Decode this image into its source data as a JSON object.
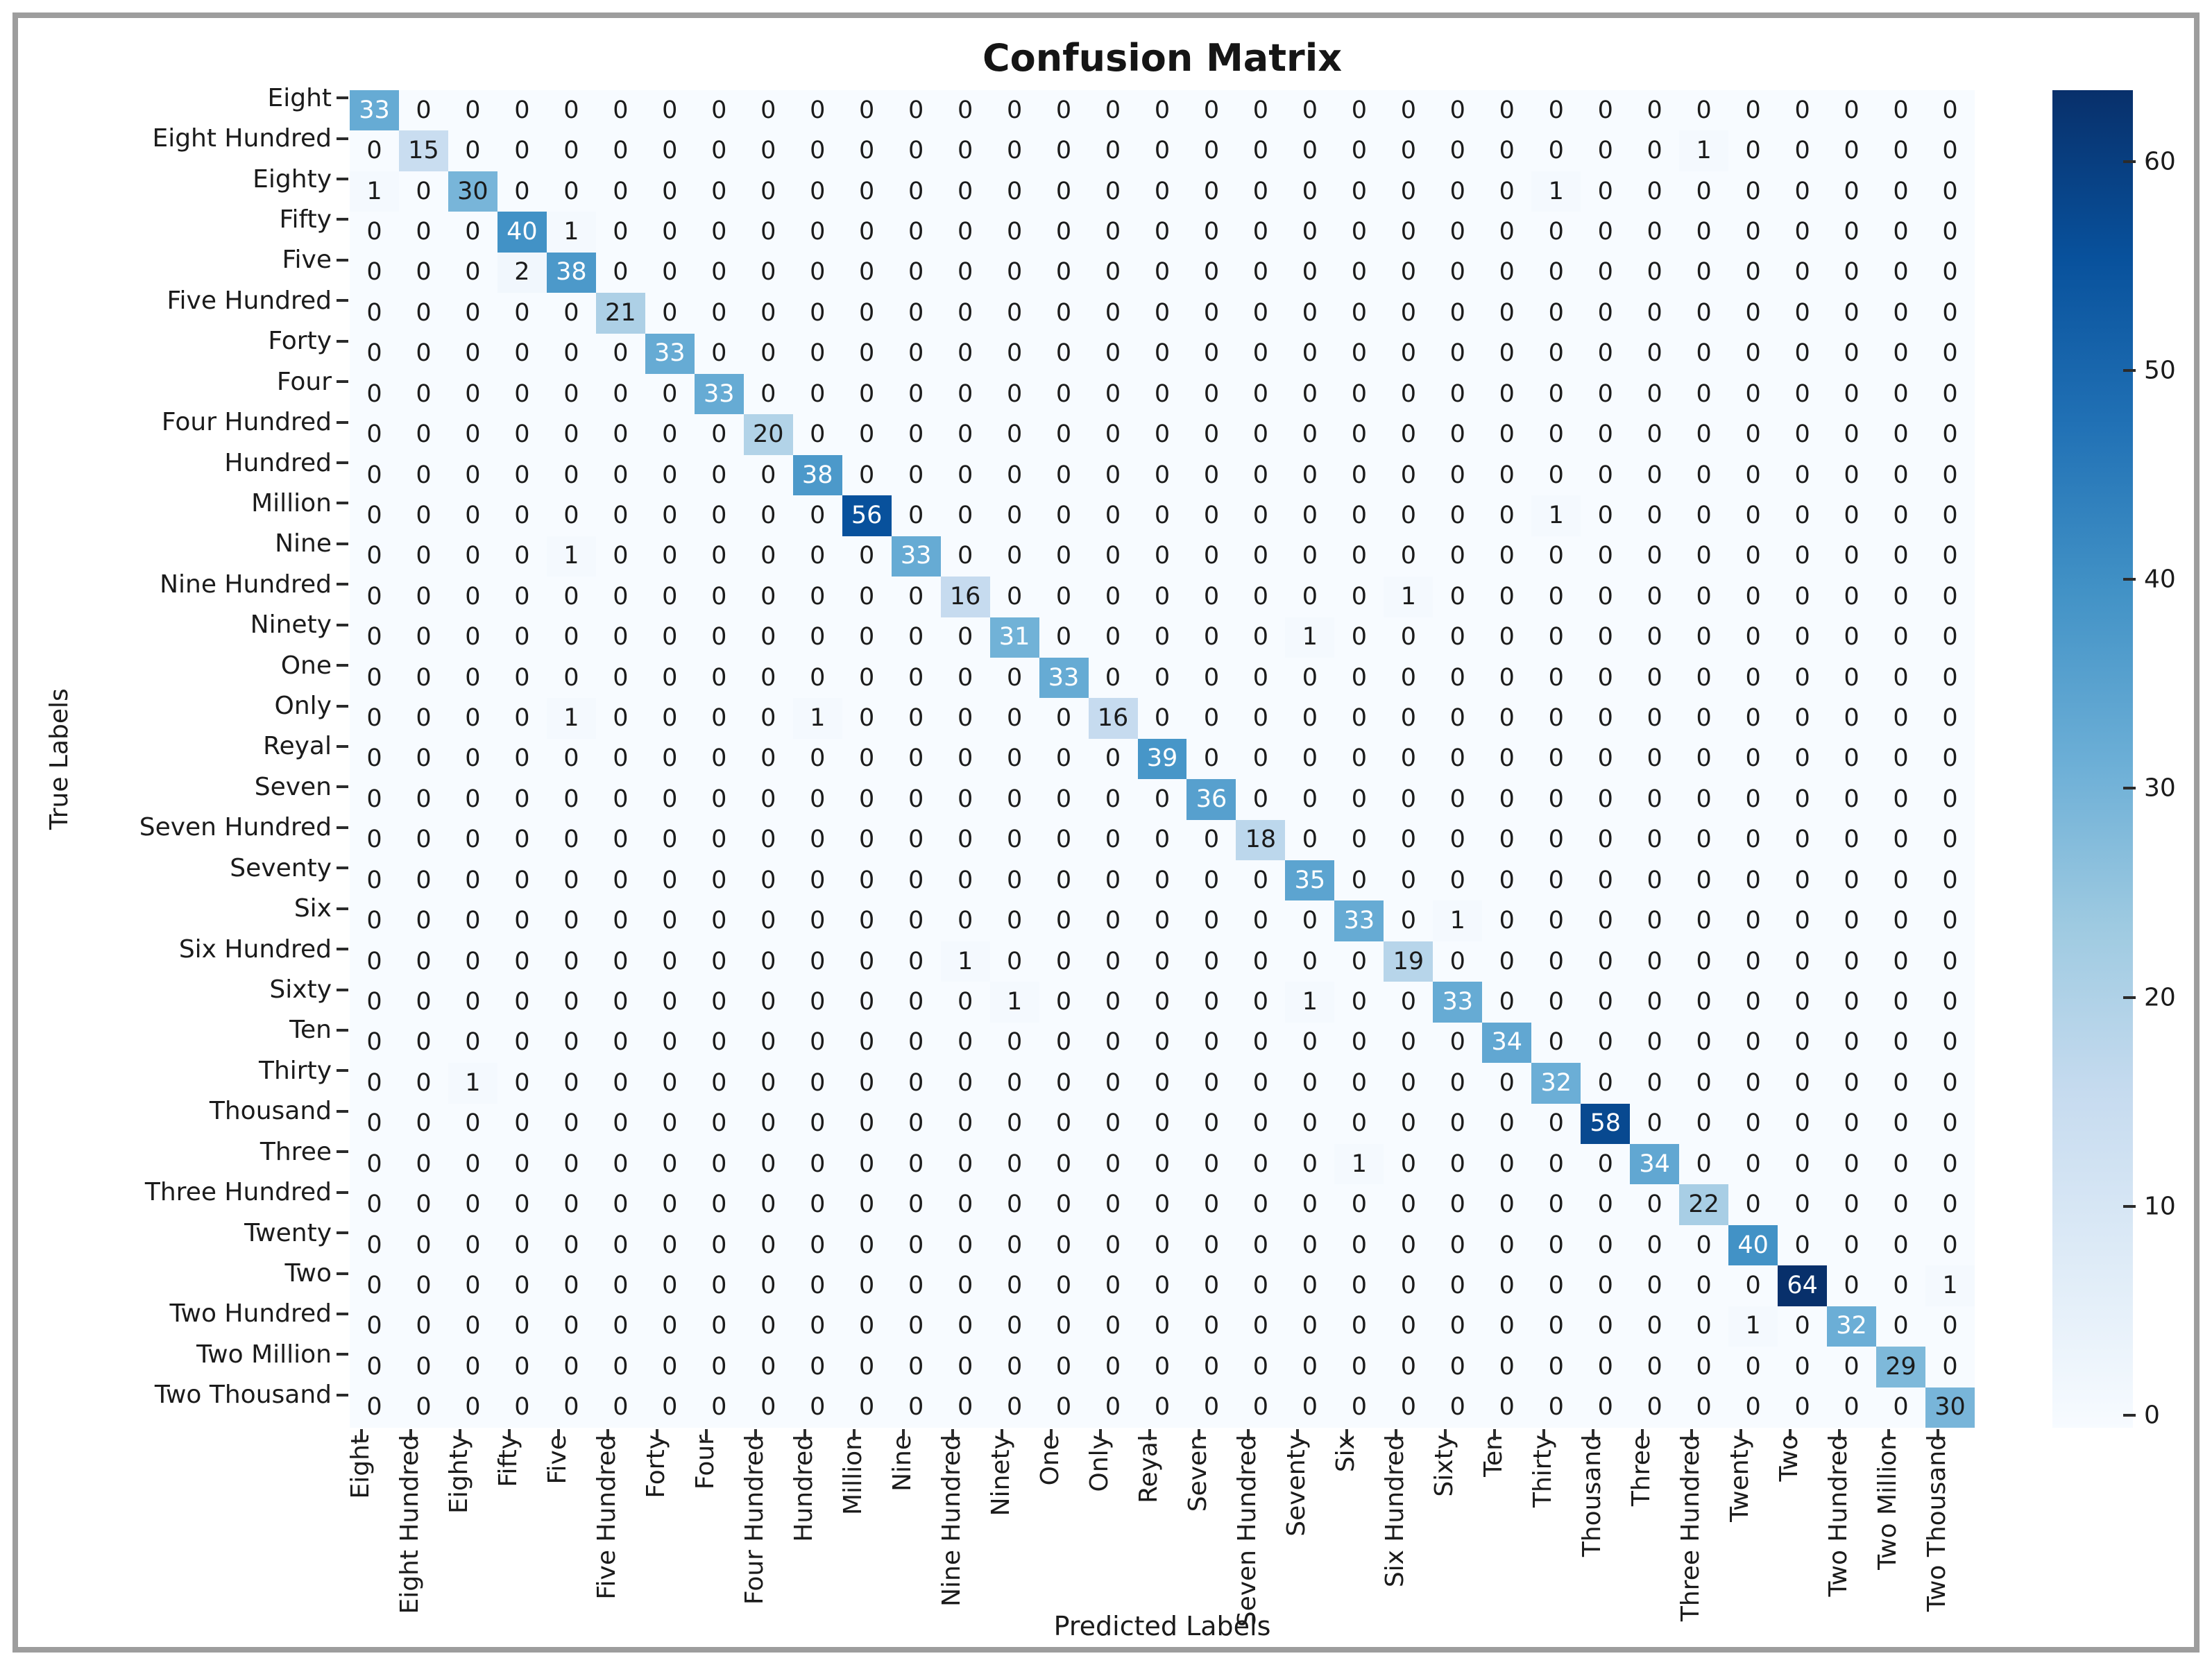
{
  "chart_data": {
    "type": "heatmap",
    "title": "Confusion Matrix",
    "xlabel": "Predicted Labels",
    "ylabel": "True Labels",
    "labels": [
      "Eight",
      "Eight Hundred",
      "Eighty",
      "Fifty",
      "Five",
      "Five Hundred",
      "Forty",
      "Four",
      "Four Hundred",
      "Hundred",
      "Million",
      "Nine",
      "Nine Hundred",
      "Ninety",
      "One",
      "Only",
      "Reyal",
      "Seven",
      "Seven Hundred",
      "Seventy",
      "Six",
      "Six Hundred",
      "Sixty",
      "Ten",
      "Thirty",
      "Thousand",
      "Three",
      "Three Hundred",
      "Twenty",
      "Two",
      "Two Hundred",
      "Two Million",
      "Two Thousand"
    ],
    "matrix": [
      [
        33,
        0,
        0,
        0,
        0,
        0,
        0,
        0,
        0,
        0,
        0,
        0,
        0,
        0,
        0,
        0,
        0,
        0,
        0,
        0,
        0,
        0,
        0,
        0,
        0,
        0,
        0,
        0,
        0,
        0,
        0,
        0,
        0
      ],
      [
        0,
        15,
        0,
        0,
        0,
        0,
        0,
        0,
        0,
        0,
        0,
        0,
        0,
        0,
        0,
        0,
        0,
        0,
        0,
        0,
        0,
        0,
        0,
        0,
        0,
        0,
        0,
        1,
        0,
        0,
        0,
        0,
        0
      ],
      [
        1,
        0,
        30,
        0,
        0,
        0,
        0,
        0,
        0,
        0,
        0,
        0,
        0,
        0,
        0,
        0,
        0,
        0,
        0,
        0,
        0,
        0,
        0,
        0,
        1,
        0,
        0,
        0,
        0,
        0,
        0,
        0,
        0
      ],
      [
        0,
        0,
        0,
        40,
        1,
        0,
        0,
        0,
        0,
        0,
        0,
        0,
        0,
        0,
        0,
        0,
        0,
        0,
        0,
        0,
        0,
        0,
        0,
        0,
        0,
        0,
        0,
        0,
        0,
        0,
        0,
        0,
        0
      ],
      [
        0,
        0,
        0,
        2,
        38,
        0,
        0,
        0,
        0,
        0,
        0,
        0,
        0,
        0,
        0,
        0,
        0,
        0,
        0,
        0,
        0,
        0,
        0,
        0,
        0,
        0,
        0,
        0,
        0,
        0,
        0,
        0,
        0
      ],
      [
        0,
        0,
        0,
        0,
        0,
        21,
        0,
        0,
        0,
        0,
        0,
        0,
        0,
        0,
        0,
        0,
        0,
        0,
        0,
        0,
        0,
        0,
        0,
        0,
        0,
        0,
        0,
        0,
        0,
        0,
        0,
        0,
        0
      ],
      [
        0,
        0,
        0,
        0,
        0,
        0,
        33,
        0,
        0,
        0,
        0,
        0,
        0,
        0,
        0,
        0,
        0,
        0,
        0,
        0,
        0,
        0,
        0,
        0,
        0,
        0,
        0,
        0,
        0,
        0,
        0,
        0,
        0
      ],
      [
        0,
        0,
        0,
        0,
        0,
        0,
        0,
        33,
        0,
        0,
        0,
        0,
        0,
        0,
        0,
        0,
        0,
        0,
        0,
        0,
        0,
        0,
        0,
        0,
        0,
        0,
        0,
        0,
        0,
        0,
        0,
        0,
        0
      ],
      [
        0,
        0,
        0,
        0,
        0,
        0,
        0,
        0,
        20,
        0,
        0,
        0,
        0,
        0,
        0,
        0,
        0,
        0,
        0,
        0,
        0,
        0,
        0,
        0,
        0,
        0,
        0,
        0,
        0,
        0,
        0,
        0,
        0
      ],
      [
        0,
        0,
        0,
        0,
        0,
        0,
        0,
        0,
        0,
        38,
        0,
        0,
        0,
        0,
        0,
        0,
        0,
        0,
        0,
        0,
        0,
        0,
        0,
        0,
        0,
        0,
        0,
        0,
        0,
        0,
        0,
        0,
        0
      ],
      [
        0,
        0,
        0,
        0,
        0,
        0,
        0,
        0,
        0,
        0,
        56,
        0,
        0,
        0,
        0,
        0,
        0,
        0,
        0,
        0,
        0,
        0,
        0,
        0,
        1,
        0,
        0,
        0,
        0,
        0,
        0,
        0,
        0
      ],
      [
        0,
        0,
        0,
        0,
        1,
        0,
        0,
        0,
        0,
        0,
        0,
        33,
        0,
        0,
        0,
        0,
        0,
        0,
        0,
        0,
        0,
        0,
        0,
        0,
        0,
        0,
        0,
        0,
        0,
        0,
        0,
        0,
        0
      ],
      [
        0,
        0,
        0,
        0,
        0,
        0,
        0,
        0,
        0,
        0,
        0,
        0,
        16,
        0,
        0,
        0,
        0,
        0,
        0,
        0,
        0,
        1,
        0,
        0,
        0,
        0,
        0,
        0,
        0,
        0,
        0,
        0,
        0
      ],
      [
        0,
        0,
        0,
        0,
        0,
        0,
        0,
        0,
        0,
        0,
        0,
        0,
        0,
        31,
        0,
        0,
        0,
        0,
        0,
        1,
        0,
        0,
        0,
        0,
        0,
        0,
        0,
        0,
        0,
        0,
        0,
        0,
        0
      ],
      [
        0,
        0,
        0,
        0,
        0,
        0,
        0,
        0,
        0,
        0,
        0,
        0,
        0,
        0,
        33,
        0,
        0,
        0,
        0,
        0,
        0,
        0,
        0,
        0,
        0,
        0,
        0,
        0,
        0,
        0,
        0,
        0,
        0
      ],
      [
        0,
        0,
        0,
        0,
        1,
        0,
        0,
        0,
        0,
        1,
        0,
        0,
        0,
        0,
        0,
        16,
        0,
        0,
        0,
        0,
        0,
        0,
        0,
        0,
        0,
        0,
        0,
        0,
        0,
        0,
        0,
        0,
        0
      ],
      [
        0,
        0,
        0,
        0,
        0,
        0,
        0,
        0,
        0,
        0,
        0,
        0,
        0,
        0,
        0,
        0,
        39,
        0,
        0,
        0,
        0,
        0,
        0,
        0,
        0,
        0,
        0,
        0,
        0,
        0,
        0,
        0,
        0
      ],
      [
        0,
        0,
        0,
        0,
        0,
        0,
        0,
        0,
        0,
        0,
        0,
        0,
        0,
        0,
        0,
        0,
        0,
        36,
        0,
        0,
        0,
        0,
        0,
        0,
        0,
        0,
        0,
        0,
        0,
        0,
        0,
        0,
        0
      ],
      [
        0,
        0,
        0,
        0,
        0,
        0,
        0,
        0,
        0,
        0,
        0,
        0,
        0,
        0,
        0,
        0,
        0,
        0,
        18,
        0,
        0,
        0,
        0,
        0,
        0,
        0,
        0,
        0,
        0,
        0,
        0,
        0,
        0
      ],
      [
        0,
        0,
        0,
        0,
        0,
        0,
        0,
        0,
        0,
        0,
        0,
        0,
        0,
        0,
        0,
        0,
        0,
        0,
        0,
        35,
        0,
        0,
        0,
        0,
        0,
        0,
        0,
        0,
        0,
        0,
        0,
        0,
        0
      ],
      [
        0,
        0,
        0,
        0,
        0,
        0,
        0,
        0,
        0,
        0,
        0,
        0,
        0,
        0,
        0,
        0,
        0,
        0,
        0,
        0,
        33,
        0,
        1,
        0,
        0,
        0,
        0,
        0,
        0,
        0,
        0,
        0,
        0
      ],
      [
        0,
        0,
        0,
        0,
        0,
        0,
        0,
        0,
        0,
        0,
        0,
        0,
        1,
        0,
        0,
        0,
        0,
        0,
        0,
        0,
        0,
        19,
        0,
        0,
        0,
        0,
        0,
        0,
        0,
        0,
        0,
        0,
        0
      ],
      [
        0,
        0,
        0,
        0,
        0,
        0,
        0,
        0,
        0,
        0,
        0,
        0,
        0,
        1,
        0,
        0,
        0,
        0,
        0,
        1,
        0,
        0,
        33,
        0,
        0,
        0,
        0,
        0,
        0,
        0,
        0,
        0,
        0
      ],
      [
        0,
        0,
        0,
        0,
        0,
        0,
        0,
        0,
        0,
        0,
        0,
        0,
        0,
        0,
        0,
        0,
        0,
        0,
        0,
        0,
        0,
        0,
        0,
        34,
        0,
        0,
        0,
        0,
        0,
        0,
        0,
        0,
        0
      ],
      [
        0,
        0,
        1,
        0,
        0,
        0,
        0,
        0,
        0,
        0,
        0,
        0,
        0,
        0,
        0,
        0,
        0,
        0,
        0,
        0,
        0,
        0,
        0,
        0,
        32,
        0,
        0,
        0,
        0,
        0,
        0,
        0,
        0
      ],
      [
        0,
        0,
        0,
        0,
        0,
        0,
        0,
        0,
        0,
        0,
        0,
        0,
        0,
        0,
        0,
        0,
        0,
        0,
        0,
        0,
        0,
        0,
        0,
        0,
        0,
        58,
        0,
        0,
        0,
        0,
        0,
        0,
        0
      ],
      [
        0,
        0,
        0,
        0,
        0,
        0,
        0,
        0,
        0,
        0,
        0,
        0,
        0,
        0,
        0,
        0,
        0,
        0,
        0,
        0,
        1,
        0,
        0,
        0,
        0,
        0,
        34,
        0,
        0,
        0,
        0,
        0,
        0
      ],
      [
        0,
        0,
        0,
        0,
        0,
        0,
        0,
        0,
        0,
        0,
        0,
        0,
        0,
        0,
        0,
        0,
        0,
        0,
        0,
        0,
        0,
        0,
        0,
        0,
        0,
        0,
        0,
        22,
        0,
        0,
        0,
        0,
        0
      ],
      [
        0,
        0,
        0,
        0,
        0,
        0,
        0,
        0,
        0,
        0,
        0,
        0,
        0,
        0,
        0,
        0,
        0,
        0,
        0,
        0,
        0,
        0,
        0,
        0,
        0,
        0,
        0,
        0,
        40,
        0,
        0,
        0,
        0
      ],
      [
        0,
        0,
        0,
        0,
        0,
        0,
        0,
        0,
        0,
        0,
        0,
        0,
        0,
        0,
        0,
        0,
        0,
        0,
        0,
        0,
        0,
        0,
        0,
        0,
        0,
        0,
        0,
        0,
        0,
        64,
        0,
        0,
        1
      ],
      [
        0,
        0,
        0,
        0,
        0,
        0,
        0,
        0,
        0,
        0,
        0,
        0,
        0,
        0,
        0,
        0,
        0,
        0,
        0,
        0,
        0,
        0,
        0,
        0,
        0,
        0,
        0,
        0,
        1,
        0,
        32,
        0,
        0
      ],
      [
        0,
        0,
        0,
        0,
        0,
        0,
        0,
        0,
        0,
        0,
        0,
        0,
        0,
        0,
        0,
        0,
        0,
        0,
        0,
        0,
        0,
        0,
        0,
        0,
        0,
        0,
        0,
        0,
        0,
        0,
        0,
        29,
        0
      ],
      [
        0,
        0,
        0,
        0,
        0,
        0,
        0,
        0,
        0,
        0,
        0,
        0,
        0,
        0,
        0,
        0,
        0,
        0,
        0,
        0,
        0,
        0,
        0,
        0,
        0,
        0,
        0,
        0,
        0,
        0,
        0,
        0,
        30
      ]
    ],
    "vmin": 0,
    "vmax": 64,
    "colormap": "Blues",
    "colorbar": {
      "ticks": [
        0,
        10,
        20,
        30,
        40,
        50,
        60
      ]
    },
    "colors": {
      "frame_border": "#9d9d9d",
      "background_low": "#f7fbff",
      "background_high": "#08306b",
      "dark_text": "#1b1b1b",
      "light_text": "#ffffff"
    },
    "layout": {
      "grid": false,
      "legend_position": "right-colorbar",
      "x_tick_rotation": 90
    }
  }
}
